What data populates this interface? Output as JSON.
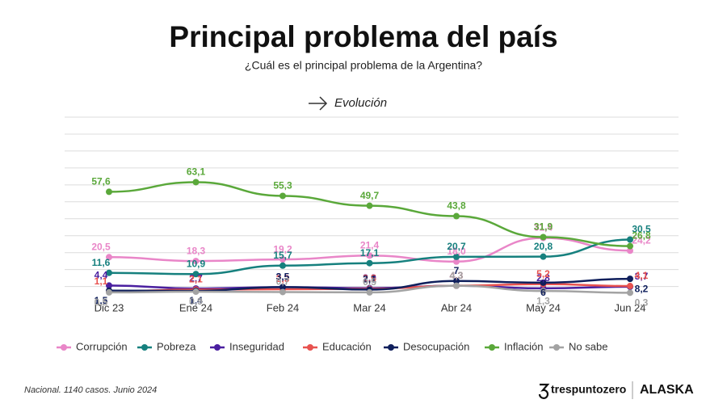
{
  "chart_data": {
    "type": "line",
    "title": "Principal problema del país",
    "subtitle": "¿Cuál es el principal problema de la Argentina?",
    "annotation": "Evolución",
    "source": "Nacional. 1140 casos. Junio 2024",
    "logos": [
      "trespuntozero",
      "ALASKA"
    ],
    "categories": [
      "Dic 23",
      "Ene 24",
      "Feb 24",
      "Mar 24",
      "Abr 24",
      "May 24",
      "Jun 24"
    ],
    "ylim": [
      0,
      100
    ],
    "grid": true,
    "legend": "bottom",
    "series": [
      {
        "name": "Corrupción",
        "color": "#e986c8",
        "values": [
          20.5,
          18.3,
          19.2,
          21.4,
          18.0,
          31.4,
          24.2
        ],
        "value_labels": [
          "20,5",
          "18,3",
          "19,2",
          "21,4",
          "18,0",
          "31,4",
          "24,2"
        ]
      },
      {
        "name": "Pobreza",
        "color": "#16807e",
        "values": [
          11.6,
          10.9,
          15.7,
          17.1,
          20.7,
          20.8,
          30.5
        ],
        "value_labels": [
          "11,6",
          "10,9",
          "15,7",
          "17,1",
          "20,7",
          "20,8",
          "30,5"
        ]
      },
      {
        "name": "Inseguridad",
        "color": "#4a1fa0",
        "values": [
          4.4,
          2.7,
          3.5,
          2.9,
          4.3,
          2.8,
          3.7
        ],
        "value_labels": [
          "4,4",
          "2,7",
          "3,5",
          "2,9",
          "4,3",
          "2,8",
          "3,7"
        ]
      },
      {
        "name": "Educación",
        "color": "#e8524f",
        "values": [
          1.1,
          2.1,
          2.3,
          2.5,
          4.3,
          5.2,
          4.1
        ],
        "value_labels": [
          "1,1",
          "2,1",
          "2,3",
          "2,5",
          "4,3",
          "5,2",
          "4,1"
        ]
      },
      {
        "name": "Desocupación",
        "color": "#0f1f5c",
        "values": [
          1.5,
          1.4,
          3.5,
          2.1,
          7,
          6,
          8.2
        ],
        "value_labels": [
          "1,5",
          "1,4",
          "3,5",
          "2,1",
          "7",
          "6",
          "8,2"
        ]
      },
      {
        "name": "Inflación",
        "color": "#5aa83a",
        "values": [
          57.6,
          63.1,
          55.3,
          49.7,
          43.8,
          31.9,
          26.8
        ],
        "value_labels": [
          "57,6",
          "63,1",
          "55,3",
          "49,7",
          "43,8",
          "31,9",
          "26,8"
        ]
      },
      {
        "name": "No sabe",
        "color": "#a3a3a3",
        "values": [
          0.5,
          0.9,
          0.7,
          0.5,
          4.3,
          1.3,
          0.3
        ],
        "value_labels": [
          "0,5",
          "0,9",
          "0,7",
          "0,5",
          "4,3",
          "1,3",
          "0,3"
        ]
      }
    ]
  }
}
